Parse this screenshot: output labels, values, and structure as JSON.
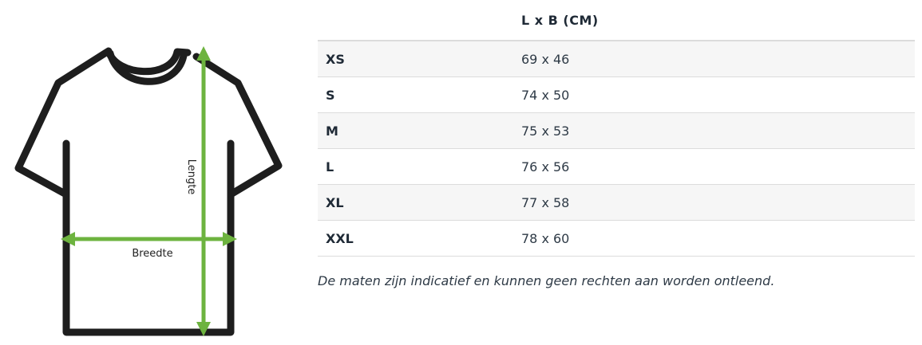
{
  "diagram": {
    "length_label": "Lengte",
    "width_label": "Breedte",
    "arrow_color": "#6db33f",
    "outline_color": "#1e1e1e"
  },
  "table": {
    "header_size": "",
    "header_dims": "L x B (CM)",
    "rows": [
      {
        "size": "XS",
        "dims": "69 x 46"
      },
      {
        "size": "S",
        "dims": "74 x 50"
      },
      {
        "size": "M",
        "dims": "75 x 53"
      },
      {
        "size": "L",
        "dims": "76 x 56"
      },
      {
        "size": "XL",
        "dims": "77 x 58"
      },
      {
        "size": "XXL",
        "dims": "78 x 60"
      }
    ]
  },
  "disclaimer": "De maten zijn indicatief en kunnen geen rechten aan worden ontleend."
}
